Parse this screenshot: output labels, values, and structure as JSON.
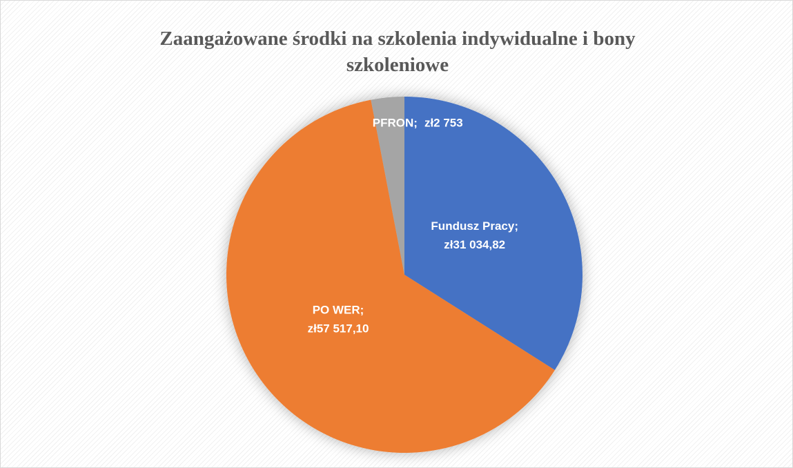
{
  "chart_data": {
    "type": "pie",
    "title": "Zaangażowane środki na szkolenia indywidualne i bony szkoleniowe",
    "categories": [
      "Fundusz Pracy;",
      "PO WER;",
      "PFRON;"
    ],
    "values": [
      31034.82,
      57517.1,
      2753
    ],
    "value_labels": [
      "zł31 034,82",
      "zł57 517,10",
      "zł2 753"
    ],
    "colors": [
      "#4472c4",
      "#ed7d31",
      "#a5a5a5"
    ],
    "start_angle": 0,
    "direction": "clockwise"
  }
}
